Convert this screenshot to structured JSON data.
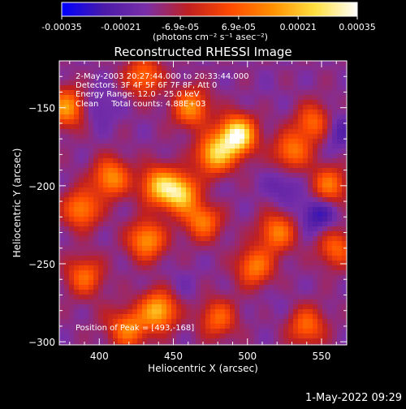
{
  "chart_data": {
    "type": "heatmap",
    "title": "Reconstructed RHESSI Image",
    "xlabel": "Heliocentric X (arcsec)",
    "ylabel": "Heliocentric Y (arcsec)",
    "xlim": [
      373,
      567
    ],
    "ylim": [
      -302,
      -120
    ],
    "xticks": [
      400,
      450,
      500,
      550
    ],
    "yticks": [
      -150,
      -200,
      -250,
      -300
    ],
    "colorbar": {
      "range": [
        -0.00035,
        0.00035
      ],
      "tick_values": [
        -0.00035,
        -0.00021,
        -6.9e-05,
        6.9e-05,
        0.00021,
        0.00035
      ],
      "tick_labels": [
        "-0.00035",
        "-0.00021",
        "-6.9e-05",
        "6.9e-05",
        "0.00021",
        "0.00035"
      ],
      "unit_label": "(photons cm⁻² s⁻¹ asec⁻²)",
      "colormap": [
        "#0000ff",
        "#4a1aa8",
        "#7a2fa8",
        "#c02020",
        "#ff4a00",
        "#ff9000",
        "#ffe040",
        "#ffffff"
      ]
    },
    "annotations": [
      "2-May-2003 20:27:44.000 to 20:33:44.000",
      "Detectors: 3F 4F 5F 6F 7F 8F, Att 0",
      "Energy Range: 12.0 - 25.0 keV",
      "Clean     Total counts: 4.88E+03",
      "Position of Peak = [493,-168]"
    ],
    "peak": {
      "x": 493,
      "y": -168,
      "value": 0.00035
    },
    "features": [
      {
        "x": 493,
        "y": -168,
        "value": 0.00035
      },
      {
        "x": 478,
        "y": -180,
        "value": 0.00022
      },
      {
        "x": 455,
        "y": -205,
        "value": 0.00024
      },
      {
        "x": 440,
        "y": -200,
        "value": 0.00018
      },
      {
        "x": 470,
        "y": -222,
        "value": 0.00014
      },
      {
        "x": 432,
        "y": -235,
        "value": 0.00016
      },
      {
        "x": 520,
        "y": -230,
        "value": 0.00012
      },
      {
        "x": 408,
        "y": -195,
        "value": 0.00015
      },
      {
        "x": 388,
        "y": -215,
        "value": 0.00013
      },
      {
        "x": 378,
        "y": -150,
        "value": 0.00016
      },
      {
        "x": 462,
        "y": -150,
        "value": 0.00014
      },
      {
        "x": 505,
        "y": -252,
        "value": 0.00012
      },
      {
        "x": 530,
        "y": -178,
        "value": 0.00011
      },
      {
        "x": 545,
        "y": -160,
        "value": 0.0001
      },
      {
        "x": 555,
        "y": -200,
        "value": 0.00011
      },
      {
        "x": 440,
        "y": -280,
        "value": 0.00021
      },
      {
        "x": 420,
        "y": -292,
        "value": 0.00012
      },
      {
        "x": 390,
        "y": -258,
        "value": 9e-05
      },
      {
        "x": 540,
        "y": -290,
        "value": 9e-05
      },
      {
        "x": 430,
        "y": -130,
        "value": 0.0001
      },
      {
        "x": 560,
        "y": -240,
        "value": 8e-05
      },
      {
        "x": 480,
        "y": -285,
        "value": 8e-05
      },
      {
        "x": 525,
        "y": -200,
        "value": -0.00021
      },
      {
        "x": 548,
        "y": -218,
        "value": -0.00028
      },
      {
        "x": 472,
        "y": -212,
        "value": -0.00018
      },
      {
        "x": 560,
        "y": -165,
        "value": -0.00024
      },
      {
        "x": 515,
        "y": -140,
        "value": -0.00014
      },
      {
        "x": 400,
        "y": -150,
        "value": -0.0002
      },
      {
        "x": 455,
        "y": -265,
        "value": -0.00016
      },
      {
        "x": 520,
        "y": -275,
        "value": -0.00015
      },
      {
        "x": 405,
        "y": -285,
        "value": -0.0001
      }
    ]
  },
  "timestamp": "1-May-2022 09:29"
}
